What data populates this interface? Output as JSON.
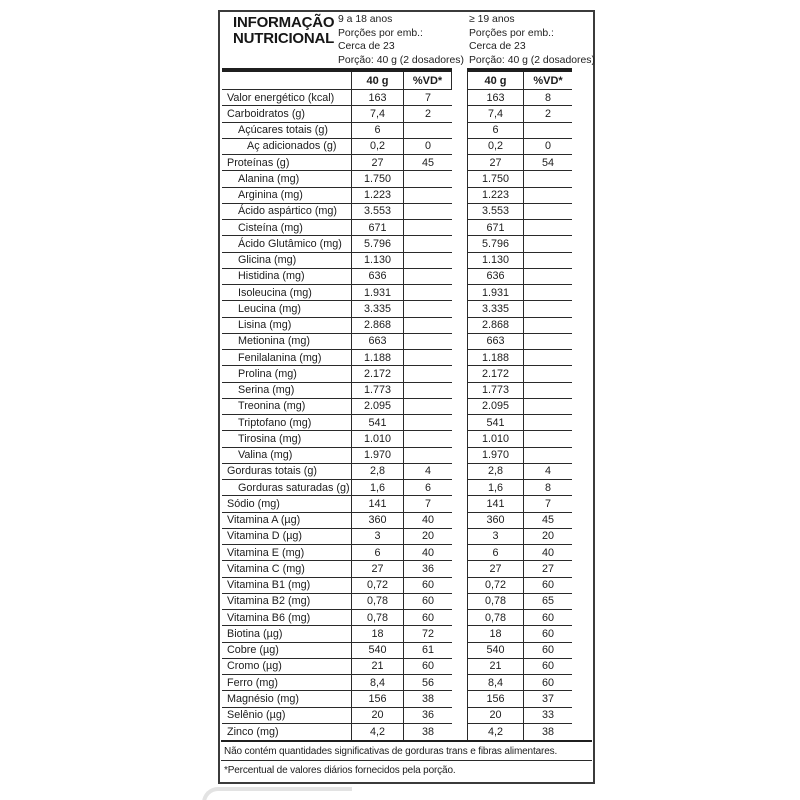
{
  "panel": {
    "title_line1": "INFORMAÇÃO",
    "title_line2": "NUTRICIONAL",
    "group1": {
      "age": "9 a 18 anos",
      "servings_line1": "Porções por emb.:",
      "servings_line2": "Cerca de 23",
      "portion": "Porção: 40 g (2 dosadores)"
    },
    "group2": {
      "age": "≥ 19 anos",
      "servings_line1": "Porções por emb.:",
      "servings_line2": "Cerca de 23",
      "portion": "Porção: 40 g (2 dosadores)"
    },
    "columns": {
      "amount": "40 g",
      "dv": "%VD*"
    },
    "rows": [
      {
        "label": "Valor energético (kcal)",
        "indent": 0,
        "v1": "163",
        "vd1": "7",
        "v2": "163",
        "vd2": "8"
      },
      {
        "label": "Carboidratos (g)",
        "indent": 0,
        "v1": "7,4",
        "vd1": "2",
        "v2": "7,4",
        "vd2": "2"
      },
      {
        "label": "Açúcares totais (g)",
        "indent": 1,
        "v1": "6",
        "vd1": "",
        "v2": "6",
        "vd2": ""
      },
      {
        "label": "Aç adicionados (g)",
        "indent": 2,
        "v1": "0,2",
        "vd1": "0",
        "v2": "0,2",
        "vd2": "0"
      },
      {
        "label": "Proteínas (g)",
        "indent": 0,
        "v1": "27",
        "vd1": "45",
        "v2": "27",
        "vd2": "54"
      },
      {
        "label": "Alanina (mg)",
        "indent": 1,
        "v1": "1.750",
        "vd1": "",
        "v2": "1.750",
        "vd2": ""
      },
      {
        "label": "Arginina (mg)",
        "indent": 1,
        "v1": "1.223",
        "vd1": "",
        "v2": "1.223",
        "vd2": ""
      },
      {
        "label": "Ácido aspártico (mg)",
        "indent": 1,
        "v1": "3.553",
        "vd1": "",
        "v2": "3.553",
        "vd2": ""
      },
      {
        "label": "Cisteína (mg)",
        "indent": 1,
        "v1": "671",
        "vd1": "",
        "v2": "671",
        "vd2": ""
      },
      {
        "label": "Ácido Glutâmico (mg)",
        "indent": 1,
        "v1": "5.796",
        "vd1": "",
        "v2": "5.796",
        "vd2": ""
      },
      {
        "label": "Glicina (mg)",
        "indent": 1,
        "v1": "1.130",
        "vd1": "",
        "v2": "1.130",
        "vd2": ""
      },
      {
        "label": "Histidina (mg)",
        "indent": 1,
        "v1": "636",
        "vd1": "",
        "v2": "636",
        "vd2": ""
      },
      {
        "label": "Isoleucina (mg)",
        "indent": 1,
        "v1": "1.931",
        "vd1": "",
        "v2": "1.931",
        "vd2": ""
      },
      {
        "label": "Leucina (mg)",
        "indent": 1,
        "v1": "3.335",
        "vd1": "",
        "v2": "3.335",
        "vd2": ""
      },
      {
        "label": "Lisina (mg)",
        "indent": 1,
        "v1": "2.868",
        "vd1": "",
        "v2": "2.868",
        "vd2": ""
      },
      {
        "label": "Metionina (mg)",
        "indent": 1,
        "v1": "663",
        "vd1": "",
        "v2": "663",
        "vd2": ""
      },
      {
        "label": "Fenilalanina (mg)",
        "indent": 1,
        "v1": "1.188",
        "vd1": "",
        "v2": "1.188",
        "vd2": ""
      },
      {
        "label": "Prolina (mg)",
        "indent": 1,
        "v1": "2.172",
        "vd1": "",
        "v2": "2.172",
        "vd2": ""
      },
      {
        "label": "Serina (mg)",
        "indent": 1,
        "v1": "1.773",
        "vd1": "",
        "v2": "1.773",
        "vd2": ""
      },
      {
        "label": "Treonina (mg)",
        "indent": 1,
        "v1": "2.095",
        "vd1": "",
        "v2": "2.095",
        "vd2": ""
      },
      {
        "label": "Triptofano (mg)",
        "indent": 1,
        "v1": "541",
        "vd1": "",
        "v2": "541",
        "vd2": ""
      },
      {
        "label": "Tirosina (mg)",
        "indent": 1,
        "v1": "1.010",
        "vd1": "",
        "v2": "1.010",
        "vd2": ""
      },
      {
        "label": "Valina (mg)",
        "indent": 1,
        "v1": "1.970",
        "vd1": "",
        "v2": "1.970",
        "vd2": ""
      },
      {
        "label": "Gorduras totais (g)",
        "indent": 0,
        "v1": "2,8",
        "vd1": "4",
        "v2": "2,8",
        "vd2": "4"
      },
      {
        "label": "Gorduras saturadas (g)",
        "indent": 1,
        "v1": "1,6",
        "vd1": "6",
        "v2": "1,6",
        "vd2": "8"
      },
      {
        "label": "Sódio (mg)",
        "indent": 0,
        "v1": "141",
        "vd1": "7",
        "v2": "141",
        "vd2": "7"
      },
      {
        "label": "Vitamina A (µg)",
        "indent": 0,
        "v1": "360",
        "vd1": "40",
        "v2": "360",
        "vd2": "45"
      },
      {
        "label": "Vitamina D (µg)",
        "indent": 0,
        "v1": "3",
        "vd1": "20",
        "v2": "3",
        "vd2": "20"
      },
      {
        "label": "Vitamina E (mg)",
        "indent": 0,
        "v1": "6",
        "vd1": "40",
        "v2": "6",
        "vd2": "40"
      },
      {
        "label": "Vitamina C (mg)",
        "indent": 0,
        "v1": "27",
        "vd1": "36",
        "v2": "27",
        "vd2": "27"
      },
      {
        "label": "Vitamina B1 (mg)",
        "indent": 0,
        "v1": "0,72",
        "vd1": "60",
        "v2": "0,72",
        "vd2": "60"
      },
      {
        "label": "Vitamina B2 (mg)",
        "indent": 0,
        "v1": "0,78",
        "vd1": "60",
        "v2": "0,78",
        "vd2": "65"
      },
      {
        "label": "Vitamina B6 (mg)",
        "indent": 0,
        "v1": "0,78",
        "vd1": "60",
        "v2": "0,78",
        "vd2": "60"
      },
      {
        "label": "Biotina (µg)",
        "indent": 0,
        "v1": "18",
        "vd1": "72",
        "v2": "18",
        "vd2": "60"
      },
      {
        "label": "Cobre (µg)",
        "indent": 0,
        "v1": "540",
        "vd1": "61",
        "v2": "540",
        "vd2": "60"
      },
      {
        "label": "Cromo (µg)",
        "indent": 0,
        "v1": "21",
        "vd1": "60",
        "v2": "21",
        "vd2": "60"
      },
      {
        "label": "Ferro (mg)",
        "indent": 0,
        "v1": "8,4",
        "vd1": "56",
        "v2": "8,4",
        "vd2": "60"
      },
      {
        "label": "Magnésio (mg)",
        "indent": 0,
        "v1": "156",
        "vd1": "38",
        "v2": "156",
        "vd2": "37"
      },
      {
        "label": "Selênio (µg)",
        "indent": 0,
        "v1": "20",
        "vd1": "36",
        "v2": "20",
        "vd2": "33"
      },
      {
        "label": "Zinco (mg)",
        "indent": 0,
        "v1": "4,2",
        "vd1": "38",
        "v2": "4,2",
        "vd2": "38"
      }
    ],
    "footnotes": [
      "Não contém quantidades significativas de gorduras trans e fibras alimentares.",
      "*Percentual de valores diários fornecidos pela porção."
    ],
    "colors": {
      "ink": "#1c1c1c",
      "rule": "#2a2a2a",
      "box_border": "#3b3b3b"
    }
  }
}
